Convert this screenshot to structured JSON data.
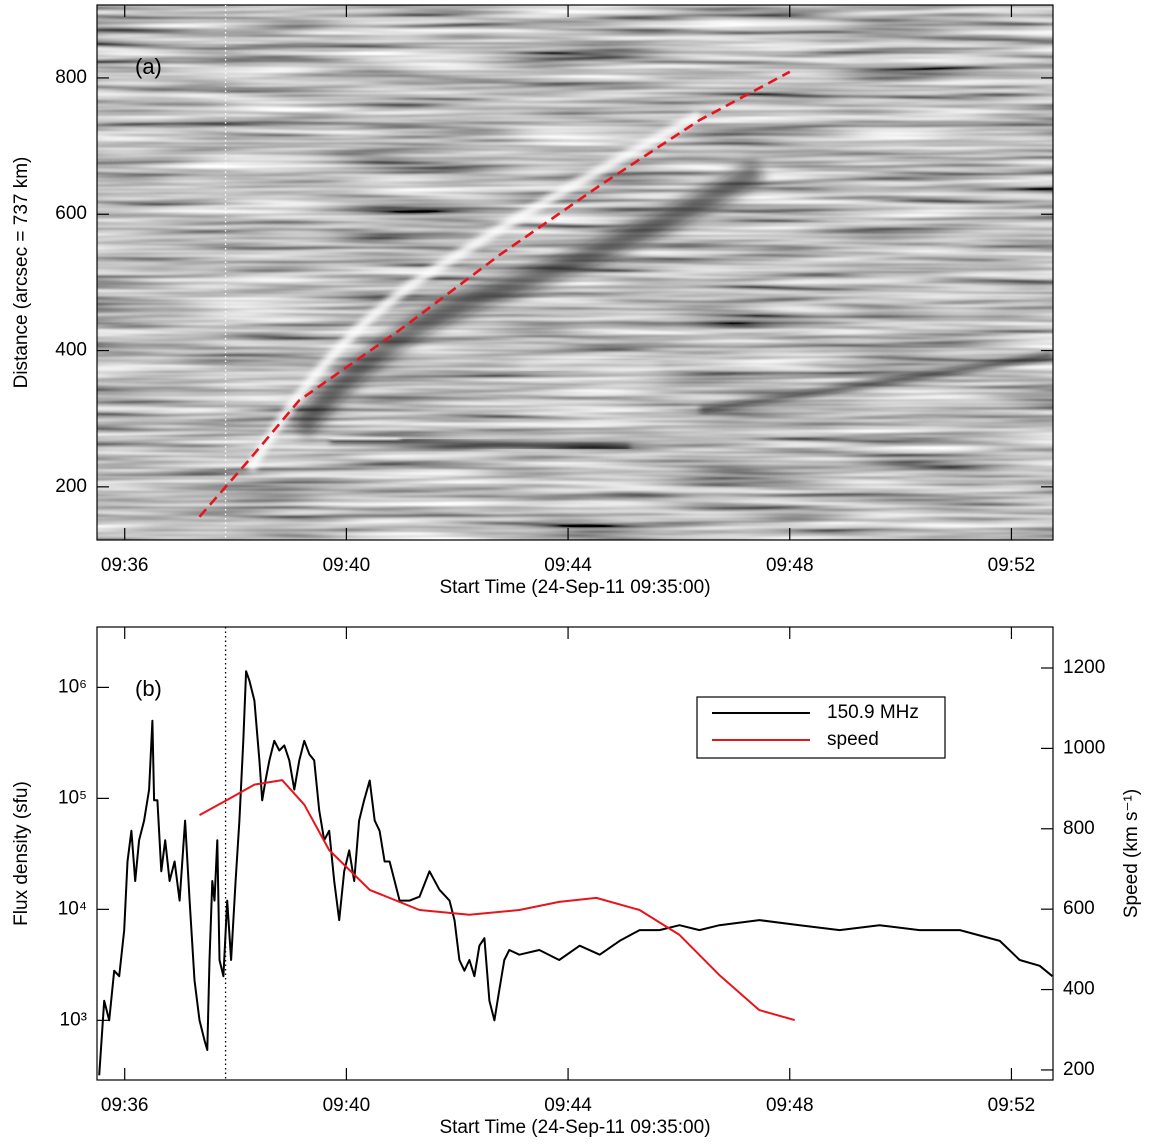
{
  "chart_data": [
    {
      "type": "line",
      "annotation": "(a)",
      "xlabel": "Start Time (24-Sep-11 09:35:00)",
      "ylabel": "Distance (arcsec = 737 km)",
      "xlim": [
        0.5,
        17.75
      ],
      "ylim": [
        122,
        907
      ],
      "xticks": [
        {
          "value": 1,
          "label": "09:36"
        },
        {
          "value": 5,
          "label": "09:40"
        },
        {
          "value": 9,
          "label": "09:44"
        },
        {
          "value": 13,
          "label": "09:48"
        },
        {
          "value": 17,
          "label": "09:52"
        }
      ],
      "yticks": [
        200,
        400,
        600,
        800
      ],
      "vline": 2.82,
      "series": [
        {
          "color": "#e8141c",
          "dash": true,
          "x": [
            2.35,
            3.25,
            4.15,
            5.96,
            7.76,
            9.57,
            11.37,
            13.0
          ],
          "values": [
            156,
            240,
            327,
            430,
            540,
            642,
            738,
            809
          ]
        }
      ]
    },
    {
      "type": "line",
      "annotation": "(b)",
      "xlabel": "Start Time (24-Sep-11 09:35:00)",
      "ylabel": "Flux density (sfu)",
      "y2label": "Speed (km s⁻¹)",
      "ylog": true,
      "legend": "upper right",
      "xlim": [
        0.5,
        17.75
      ],
      "ylim": [
        290,
        3500000
      ],
      "y2lim": [
        175,
        1302
      ],
      "xticks": [
        {
          "value": 1,
          "label": "09:36"
        },
        {
          "value": 5,
          "label": "09:40"
        },
        {
          "value": 9,
          "label": "09:44"
        },
        {
          "value": 13,
          "label": "09:48"
        },
        {
          "value": 17,
          "label": "09:52"
        }
      ],
      "yticks": [
        {
          "value": 1000,
          "label": "10³"
        },
        {
          "value": 10000,
          "label": "10⁴"
        },
        {
          "value": 100000,
          "label": "10⁵"
        },
        {
          "value": 1000000,
          "label": "10⁶"
        }
      ],
      "y2ticks": [
        200,
        400,
        600,
        800,
        1000,
        1200
      ],
      "vline": 2.82,
      "series": [
        {
          "name": "150.9 MHz",
          "color": "#000000",
          "x": [
            0.54,
            0.63,
            0.72,
            0.81,
            0.9,
            0.99,
            1.05,
            1.12,
            1.19,
            1.26,
            1.35,
            1.44,
            1.5,
            1.53,
            1.59,
            1.66,
            1.73,
            1.81,
            1.9,
            1.99,
            2.04,
            2.09,
            2.17,
            2.26,
            2.35,
            2.44,
            2.49,
            2.53,
            2.58,
            2.62,
            2.67,
            2.71,
            2.78,
            2.85,
            2.92,
            3.0,
            3.07,
            3.14,
            3.19,
            3.25,
            3.34,
            3.43,
            3.48,
            3.54,
            3.61,
            3.7,
            3.79,
            3.88,
            3.97,
            4.06,
            4.15,
            4.24,
            4.33,
            4.42,
            4.51,
            4.6,
            4.69,
            4.78,
            4.87,
            4.96,
            5.05,
            5.14,
            5.23,
            5.32,
            5.42,
            5.51,
            5.6,
            5.69,
            5.78,
            5.87,
            5.96,
            6.14,
            6.32,
            6.5,
            6.68,
            6.86,
            6.95,
            7.04,
            7.13,
            7.22,
            7.31,
            7.4,
            7.49,
            7.58,
            7.67,
            7.76,
            7.85,
            7.94,
            8.12,
            8.48,
            8.84,
            9.21,
            9.57,
            9.93,
            10.29,
            10.65,
            11.01,
            11.37,
            11.73,
            12.45,
            13.18,
            13.9,
            14.62,
            15.34,
            16.07,
            16.79,
            17.15,
            17.51,
            17.74
          ],
          "values": [
            320,
            1500,
            1000,
            2800,
            2500,
            6500,
            27000,
            51000,
            18000,
            42000,
            63000,
            120000,
            500000,
            96000,
            96000,
            22000,
            42000,
            18000,
            27000,
            12000,
            27000,
            63000,
            12000,
            2300,
            1000,
            660,
            540,
            3500,
            18000,
            12000,
            42000,
            3500,
            2500,
            12000,
            3500,
            18000,
            63000,
            330000,
            1400000,
            1150000,
            760000,
            220000,
            96000,
            145000,
            220000,
            330000,
            270000,
            300000,
            220000,
            120000,
            220000,
            330000,
            250000,
            220000,
            78000,
            42000,
            51000,
            18000,
            8000,
            22000,
            34000,
            18000,
            63000,
            96000,
            145000,
            63000,
            51000,
            27000,
            27000,
            18000,
            12000,
            12000,
            13000,
            22000,
            15000,
            12000,
            8000,
            3500,
            2800,
            3500,
            2500,
            4700,
            5500,
            1500,
            1000,
            1900,
            3500,
            4300,
            3900,
            4300,
            3500,
            4700,
            3900,
            5200,
            6500,
            6500,
            7200,
            6500,
            7200,
            8000,
            7200,
            6500,
            7200,
            6500,
            6500,
            5200,
            3500,
            3100,
            2500
          ]
        },
        {
          "name": "speed",
          "color": "#e8141c",
          "axis": "y2",
          "x": [
            2.35,
            2.89,
            3.34,
            3.84,
            4.24,
            4.69,
            5.42,
            6.32,
            7.22,
            8.12,
            8.84,
            9.51,
            10.29,
            11.01,
            11.73,
            12.45,
            13.09
          ],
          "values": [
            834,
            875,
            910,
            921,
            860,
            747,
            648,
            598,
            586,
            598,
            618,
            628,
            598,
            536,
            436,
            349,
            324
          ]
        }
      ]
    }
  ]
}
